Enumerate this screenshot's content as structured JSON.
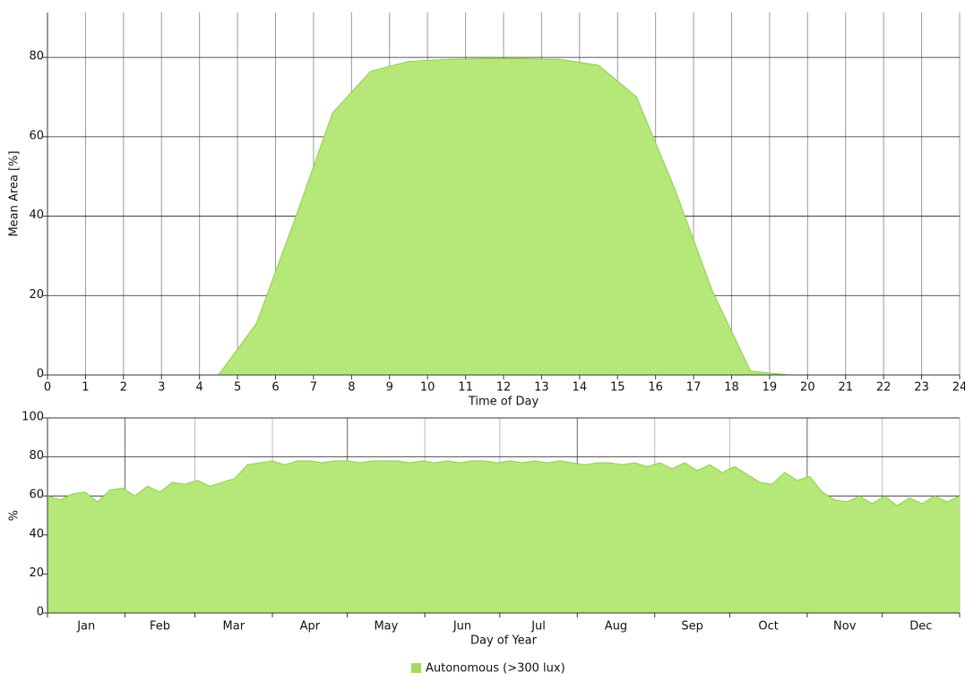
{
  "chart_data": [
    {
      "type": "area",
      "ylabel": "Mean Area [%]",
      "xlabel": "Time of Day",
      "x": [
        0,
        4.5,
        5.5,
        6.5,
        7.5,
        8.5,
        9.5,
        10.5,
        11.5,
        12.5,
        13.5,
        14.5,
        15.5,
        16.5,
        17.5,
        18.5,
        19.5,
        24
      ],
      "values": [
        0,
        0,
        13,
        39,
        66,
        76.5,
        79,
        79.5,
        79.7,
        79.7,
        79.5,
        78,
        70,
        47,
        21,
        1,
        0,
        0
      ],
      "color": "#b5e878",
      "xlim": [
        0,
        24
      ],
      "xticks": [
        0,
        1,
        2,
        3,
        4,
        5,
        6,
        7,
        8,
        9,
        10,
        11,
        12,
        13,
        14,
        15,
        16,
        17,
        18,
        19,
        20,
        21,
        22,
        23,
        24
      ],
      "ylim": [
        0,
        91.3
      ],
      "yticks": [
        0,
        20,
        40,
        60,
        80
      ],
      "grid": true
    },
    {
      "type": "area",
      "ylabel": "%",
      "xlabel": "Day of Year",
      "categories": [
        "Jan",
        "Feb",
        "Mar",
        "Apr",
        "May",
        "Jun",
        "Jul",
        "Aug",
        "Sep",
        "Oct",
        "Nov",
        "Dec"
      ],
      "xticks": [
        0,
        31,
        59,
        90,
        120,
        151,
        181,
        212,
        243,
        273,
        304,
        334,
        365
      ],
      "x": [
        0,
        5,
        10,
        15,
        20,
        25,
        30,
        35,
        40,
        45,
        50,
        55,
        60,
        65,
        70,
        75,
        80,
        85,
        90,
        95,
        100,
        105,
        110,
        115,
        120,
        125,
        130,
        135,
        140,
        145,
        150,
        155,
        160,
        165,
        170,
        175,
        180,
        185,
        190,
        195,
        200,
        205,
        210,
        215,
        220,
        225,
        230,
        235,
        240,
        245,
        250,
        255,
        260,
        265,
        270,
        275,
        280,
        285,
        290,
        295,
        300,
        305,
        310,
        315,
        320,
        325,
        330,
        335,
        340,
        345,
        350,
        355,
        360,
        365
      ],
      "values": [
        60,
        58,
        61,
        62,
        57,
        63,
        64,
        60,
        65,
        62,
        67,
        66,
        68,
        65,
        67,
        69,
        76,
        77,
        78,
        76,
        78,
        78,
        77,
        78,
        78,
        77,
        78,
        78,
        78,
        77,
        78,
        77,
        78,
        77,
        78,
        78,
        77,
        78,
        77,
        78,
        77,
        78,
        77,
        76,
        77,
        77,
        76,
        77,
        75,
        77,
        74,
        77,
        73,
        76,
        72,
        75,
        71,
        67,
        66,
        72,
        68,
        70,
        62,
        58,
        57,
        60,
        56,
        60,
        55,
        59,
        56,
        60,
        57,
        60
      ],
      "color": "#b5e878",
      "xlim": [
        0,
        365
      ],
      "ylim": [
        0,
        100
      ],
      "yticks": [
        0,
        20,
        40,
        60,
        80,
        100
      ],
      "grid": true
    }
  ],
  "legend": {
    "label": "Autonomous (>300 lux)",
    "color": "#a3dc5c"
  }
}
